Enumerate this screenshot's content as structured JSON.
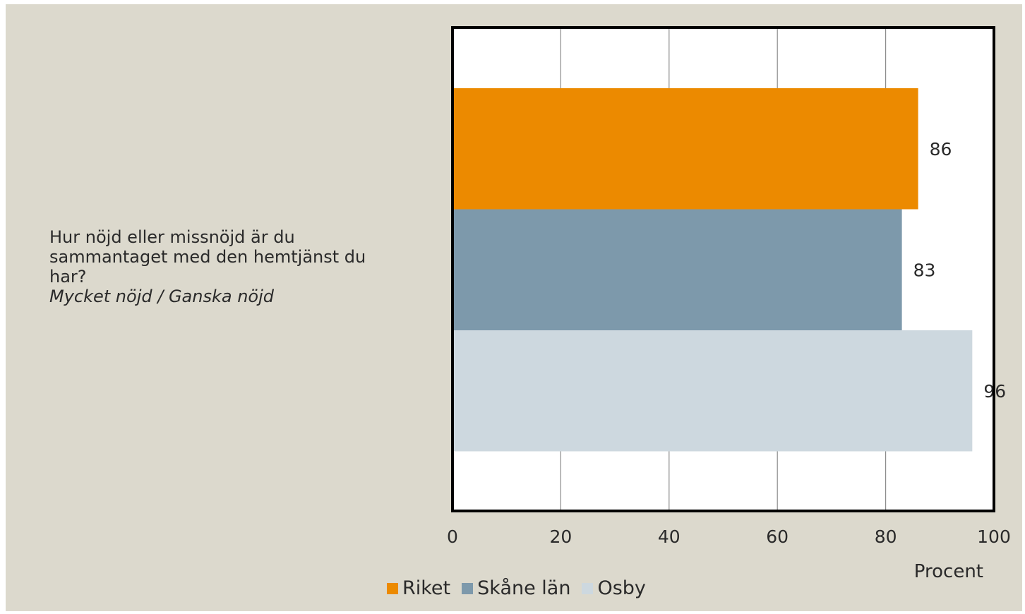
{
  "question": {
    "text": "Hur nöjd eller missnöjd är du sammantaget med den hemtjänst du har?",
    "subtext": "Mycket nöjd / Ganska nöjd"
  },
  "chart_data": {
    "type": "bar",
    "orientation": "horizontal",
    "series": [
      {
        "name": "Riket",
        "value": 86,
        "color": "#ec8a00"
      },
      {
        "name": "Skåne län",
        "value": 83,
        "color": "#7d99ab"
      },
      {
        "name": "Osby",
        "value": 96,
        "color": "#cdd8df"
      }
    ],
    "xlim": [
      0,
      100
    ],
    "xticks": [
      "0",
      "20",
      "40",
      "60",
      "80",
      "100"
    ],
    "xlabel": "Procent",
    "grid": true,
    "legend_position": "bottom"
  }
}
